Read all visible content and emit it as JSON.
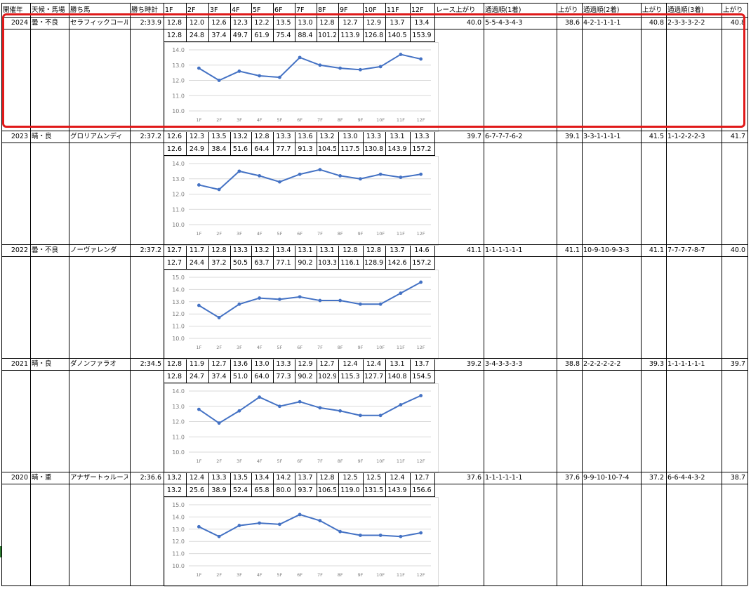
{
  "headers": {
    "year": "開催年",
    "weather": "天候・馬場",
    "winner": "勝ち馬",
    "time": "勝ち時計",
    "laps": [
      "1F",
      "2F",
      "3F",
      "4F",
      "5F",
      "6F",
      "7F",
      "8F",
      "9F",
      "10F",
      "11F",
      "12F"
    ],
    "race_last": "レース上がり",
    "passing1": "通過順(1着)",
    "last1": "上がり",
    "passing2": "通過順(2着)",
    "last2": "上がり",
    "passing3": "通過順(3着)",
    "last3": "上がり"
  },
  "races": [
    {
      "year": "2024",
      "weather": "曇・不良",
      "winner": "セラフィックコール",
      "time": "2:33.9",
      "laps": [
        "12.8",
        "12.0",
        "12.6",
        "12.3",
        "12.2",
        "13.5",
        "13.0",
        "12.8",
        "12.7",
        "12.9",
        "13.7",
        "13.4"
      ],
      "cumulative": [
        "12.8",
        "24.8",
        "37.4",
        "49.7",
        "61.9",
        "75.4",
        "88.4",
        "101.2",
        "113.9",
        "126.8",
        "140.5",
        "153.9"
      ],
      "race_last": "40.0",
      "passing1": "5-5-4-3-4-3",
      "last1": "38.6",
      "passing2": "4-2-1-1-1-1",
      "last2": "40.8",
      "passing3": "2-3-3-3-2-2",
      "last3": "40.8"
    },
    {
      "year": "2023",
      "weather": "晴・良",
      "winner": "グロリアムンディ",
      "time": "2:37.2",
      "laps": [
        "12.6",
        "12.3",
        "13.5",
        "13.2",
        "12.8",
        "13.3",
        "13.6",
        "13.2",
        "13.0",
        "13.3",
        "13.1",
        "13.3"
      ],
      "cumulative": [
        "12.6",
        "24.9",
        "38.4",
        "51.6",
        "64.4",
        "77.7",
        "91.3",
        "104.5",
        "117.5",
        "130.8",
        "143.9",
        "157.2"
      ],
      "race_last": "39.7",
      "passing1": "6-7-7-7-6-2",
      "last1": "39.1",
      "passing2": "3-3-1-1-1-1",
      "last2": "41.5",
      "passing3": "1-1-2-2-2-3",
      "last3": "41.7"
    },
    {
      "year": "2022",
      "weather": "曇・不良",
      "winner": "ノーヴァレンダ",
      "time": "2:37.2",
      "laps": [
        "12.7",
        "11.7",
        "12.8",
        "13.3",
        "13.2",
        "13.4",
        "13.1",
        "13.1",
        "12.8",
        "12.8",
        "13.7",
        "14.6"
      ],
      "cumulative": [
        "12.7",
        "24.4",
        "37.2",
        "50.5",
        "63.7",
        "77.1",
        "90.2",
        "103.3",
        "116.1",
        "128.9",
        "142.6",
        "157.2"
      ],
      "race_last": "41.1",
      "passing1": "1-1-1-1-1-1",
      "last1": "41.1",
      "passing2": "10-9-10-9-3-3",
      "last2": "41.1",
      "passing3": "7-7-7-7-8-7",
      "last3": "40.0"
    },
    {
      "year": "2021",
      "weather": "晴・良",
      "winner": "ダノンファラオ",
      "time": "2:34.5",
      "laps": [
        "12.8",
        "11.9",
        "12.7",
        "13.6",
        "13.0",
        "13.3",
        "12.9",
        "12.7",
        "12.4",
        "12.4",
        "13.1",
        "13.7"
      ],
      "cumulative": [
        "12.8",
        "24.7",
        "37.4",
        "51.0",
        "64.0",
        "77.3",
        "90.2",
        "102.9",
        "115.3",
        "127.7",
        "140.8",
        "154.5"
      ],
      "race_last": "39.2",
      "passing1": "3-4-3-3-3-3",
      "last1": "38.8",
      "passing2": "2-2-2-2-2-2",
      "last2": "39.3",
      "passing3": "1-1-1-1-1-1",
      "last3": "39.7"
    },
    {
      "year": "2020",
      "weather": "晴・重",
      "winner": "アナザートゥルース",
      "time": "2:36.6",
      "laps": [
        "13.2",
        "12.4",
        "13.3",
        "13.5",
        "13.4",
        "14.2",
        "13.7",
        "12.8",
        "12.5",
        "12.5",
        "12.4",
        "12.7"
      ],
      "cumulative": [
        "13.2",
        "25.6",
        "38.9",
        "52.4",
        "65.8",
        "80.0",
        "93.7",
        "106.5",
        "119.0",
        "131.5",
        "143.9",
        "156.6"
      ],
      "race_last": "37.6",
      "passing1": "1-1-1-1-1-1",
      "last1": "37.6",
      "passing2": "9-9-10-10-7-4",
      "last2": "37.2",
      "passing3": "6-6-4-4-3-2",
      "last3": "38.7"
    }
  ],
  "chart_data": [
    {
      "type": "line",
      "categories": [
        "1F",
        "2F",
        "3F",
        "4F",
        "5F",
        "6F",
        "7F",
        "8F",
        "9F",
        "10F",
        "11F",
        "12F"
      ],
      "series": [
        {
          "values": [
            12.8,
            12.0,
            12.6,
            12.3,
            12.2,
            13.5,
            13.0,
            12.8,
            12.7,
            12.9,
            13.7,
            13.4
          ]
        }
      ],
      "yticks": [
        "14.0",
        "13.0",
        "12.0",
        "11.0",
        "10.0"
      ],
      "ylim": [
        10,
        14
      ],
      "grid": true
    },
    {
      "type": "line",
      "categories": [
        "1F",
        "2F",
        "3F",
        "4F",
        "5F",
        "6F",
        "7F",
        "8F",
        "9F",
        "10F",
        "11F",
        "12F"
      ],
      "series": [
        {
          "values": [
            12.6,
            12.3,
            13.5,
            13.2,
            12.8,
            13.3,
            13.6,
            13.2,
            13.0,
            13.3,
            13.1,
            13.3
          ]
        }
      ],
      "yticks": [
        "14.0",
        "13.0",
        "12.0",
        "11.0",
        "10.0"
      ],
      "ylim": [
        10,
        14
      ],
      "grid": true
    },
    {
      "type": "line",
      "categories": [
        "1F",
        "2F",
        "3F",
        "4F",
        "5F",
        "6F",
        "7F",
        "8F",
        "9F",
        "10F",
        "11F",
        "12F"
      ],
      "series": [
        {
          "values": [
            12.7,
            11.7,
            12.8,
            13.3,
            13.2,
            13.4,
            13.1,
            13.1,
            12.8,
            12.8,
            13.7,
            14.6
          ]
        }
      ],
      "yticks": [
        "15.0",
        "14.0",
        "13.0",
        "12.0",
        "11.0",
        "10.0"
      ],
      "ylim": [
        10,
        15
      ],
      "grid": true
    },
    {
      "type": "line",
      "categories": [
        "1F",
        "2F",
        "3F",
        "4F",
        "5F",
        "6F",
        "7F",
        "8F",
        "9F",
        "10F",
        "11F",
        "12F"
      ],
      "series": [
        {
          "values": [
            12.8,
            11.9,
            12.7,
            13.6,
            13.0,
            13.3,
            12.9,
            12.7,
            12.4,
            12.4,
            13.1,
            13.7
          ]
        }
      ],
      "yticks": [
        "14.0",
        "13.0",
        "12.0",
        "11.0",
        "10.0"
      ],
      "ylim": [
        10,
        14
      ],
      "grid": true
    },
    {
      "type": "line",
      "categories": [
        "1F",
        "2F",
        "3F",
        "4F",
        "5F",
        "6F",
        "7F",
        "8F",
        "9F",
        "10F",
        "11F",
        "12F"
      ],
      "series": [
        {
          "values": [
            13.2,
            12.4,
            13.3,
            13.5,
            13.4,
            14.2,
            13.7,
            12.8,
            12.5,
            12.5,
            12.4,
            12.7
          ]
        }
      ],
      "yticks": [
        "15.0",
        "14.0",
        "13.0",
        "12.0",
        "11.0",
        "10.0"
      ],
      "ylim": [
        10,
        15
      ],
      "grid": true
    }
  ],
  "colors": {
    "line": "#4472c4",
    "grid": "#d9d9d9",
    "axis_text": "#7f7f7f",
    "highlight": "#e01919"
  }
}
